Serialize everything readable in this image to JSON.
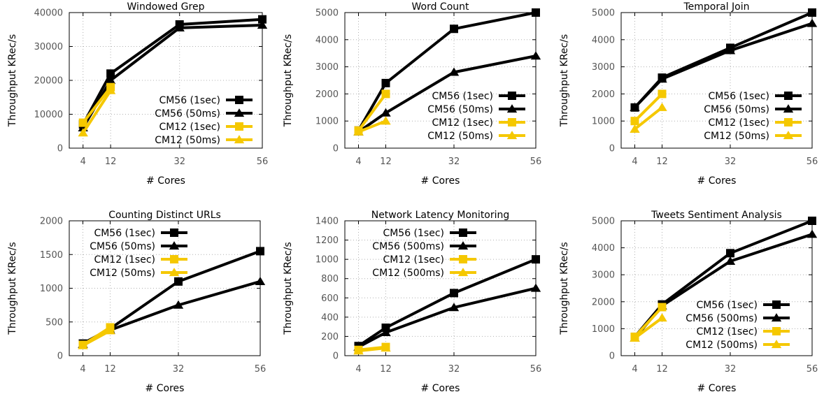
{
  "colors": {
    "cm56": "#000000",
    "cm12": "#f5c800",
    "grid": "#b0b0b0"
  },
  "chart_data": [
    {
      "type": "line",
      "title": "Windowed Grep",
      "xlabel": "# Cores",
      "ylabel": "Throughput KRec/s",
      "x": [
        4,
        12,
        32,
        56
      ],
      "ylim": [
        0,
        40000
      ],
      "yticks": [
        0,
        10000,
        20000,
        30000,
        40000
      ],
      "grid": true,
      "legend_position": "center-right",
      "series": [
        {
          "name": "CM56 (1sec)",
          "marker": "square",
          "color": "#000000",
          "x": [
            4,
            12,
            32,
            56
          ],
          "values": [
            7000,
            22000,
            36500,
            38000
          ]
        },
        {
          "name": "CM56 (50ms)",
          "marker": "triangle",
          "color": "#000000",
          "x": [
            4,
            12,
            32,
            56
          ],
          "values": [
            6000,
            20000,
            35500,
            36300
          ]
        },
        {
          "name": "CM12 (1sec)",
          "marker": "square",
          "color": "#f5c800",
          "x": [
            4,
            12
          ],
          "values": [
            7500,
            18000
          ]
        },
        {
          "name": "CM12 (50ms)",
          "marker": "triangle",
          "color": "#f5c800",
          "x": [
            4,
            12
          ],
          "values": [
            4500,
            17000
          ]
        }
      ]
    },
    {
      "type": "line",
      "title": "Word Count",
      "xlabel": "# Cores",
      "ylabel": "Throughput KRec/s",
      "x": [
        4,
        12,
        32,
        56
      ],
      "ylim": [
        0,
        5000
      ],
      "yticks": [
        0,
        1000,
        2000,
        3000,
        4000,
        5000
      ],
      "grid": true,
      "legend_position": "bottom-right",
      "series": [
        {
          "name": "CM56 (1sec)",
          "marker": "square",
          "color": "#000000",
          "x": [
            4,
            12,
            32,
            56
          ],
          "values": [
            650,
            2400,
            4400,
            5000
          ]
        },
        {
          "name": "CM56 (50ms)",
          "marker": "triangle",
          "color": "#000000",
          "x": [
            4,
            12,
            32,
            56
          ],
          "values": [
            600,
            1300,
            2800,
            3400
          ]
        },
        {
          "name": "CM12 (1sec)",
          "marker": "square",
          "color": "#f5c800",
          "x": [
            4,
            12
          ],
          "values": [
            650,
            2000
          ]
        },
        {
          "name": "CM12 (50ms)",
          "marker": "triangle",
          "color": "#f5c800",
          "x": [
            4,
            12
          ],
          "values": [
            600,
            1000
          ]
        }
      ]
    },
    {
      "type": "line",
      "title": "Temporal Join",
      "xlabel": "# Cores",
      "ylabel": "Throughput KRec/s",
      "x": [
        4,
        12,
        32,
        56
      ],
      "ylim": [
        0,
        5000
      ],
      "yticks": [
        0,
        1000,
        2000,
        3000,
        4000,
        5000
      ],
      "grid": true,
      "legend_position": "bottom-right",
      "series": [
        {
          "name": "CM56 (1sec)",
          "marker": "square",
          "color": "#000000",
          "x": [
            4,
            12,
            32,
            56
          ],
          "values": [
            1500,
            2600,
            3700,
            5000
          ]
        },
        {
          "name": "CM56 (50ms)",
          "marker": "triangle",
          "color": "#000000",
          "x": [
            4,
            12,
            32,
            56
          ],
          "values": [
            1500,
            2550,
            3600,
            4600
          ]
        },
        {
          "name": "CM12 (1sec)",
          "marker": "square",
          "color": "#f5c800",
          "x": [
            4,
            12
          ],
          "values": [
            1000,
            2000
          ]
        },
        {
          "name": "CM12 (50ms)",
          "marker": "triangle",
          "color": "#f5c800",
          "x": [
            4,
            12
          ],
          "values": [
            700,
            1500
          ]
        }
      ]
    },
    {
      "type": "line",
      "title": "Counting Distinct URLs",
      "xlabel": "# Cores",
      "ylabel": "Throughput KRec/s",
      "x": [
        4,
        12,
        32,
        56
      ],
      "ylim": [
        0,
        2000
      ],
      "yticks": [
        0,
        500,
        1000,
        1500,
        2000
      ],
      "grid": true,
      "legend_position": "top-left",
      "series": [
        {
          "name": "CM56 (1sec)",
          "marker": "square",
          "color": "#000000",
          "x": [
            4,
            12,
            32,
            56
          ],
          "values": [
            180,
            400,
            1100,
            1550
          ]
        },
        {
          "name": "CM56 (50ms)",
          "marker": "triangle",
          "color": "#000000",
          "x": [
            4,
            12,
            32,
            56
          ],
          "values": [
            170,
            380,
            750,
            1100
          ]
        },
        {
          "name": "CM12 (1sec)",
          "marker": "square",
          "color": "#f5c800",
          "x": [
            4,
            12
          ],
          "values": [
            160,
            420
          ]
        },
        {
          "name": "CM12 (50ms)",
          "marker": "triangle",
          "color": "#f5c800",
          "x": [
            4,
            12
          ],
          "values": [
            150,
            370
          ]
        }
      ]
    },
    {
      "type": "line",
      "title": "Network Latency Monitoring",
      "xlabel": "# Cores",
      "ylabel": "Throughput KRec/s",
      "x": [
        4,
        12,
        32,
        56
      ],
      "ylim": [
        0,
        1400
      ],
      "yticks": [
        0,
        200,
        400,
        600,
        800,
        1000,
        1200,
        1400
      ],
      "grid": true,
      "legend_position": "top-left",
      "series": [
        {
          "name": "CM56 (1sec)",
          "marker": "square",
          "color": "#000000",
          "x": [
            4,
            12,
            32,
            56
          ],
          "values": [
            100,
            290,
            650,
            1000
          ]
        },
        {
          "name": "CM56 (500ms)",
          "marker": "triangle",
          "color": "#000000",
          "x": [
            4,
            12,
            32,
            56
          ],
          "values": [
            90,
            240,
            500,
            700
          ]
        },
        {
          "name": "CM12 (1sec)",
          "marker": "square",
          "color": "#f5c800",
          "x": [
            4,
            12
          ],
          "values": [
            60,
            90
          ]
        },
        {
          "name": "CM12 (500ms)",
          "marker": "triangle",
          "color": "#f5c800",
          "x": [
            4,
            12
          ],
          "values": [
            50,
            80
          ]
        }
      ]
    },
    {
      "type": "line",
      "title": "Tweets Sentiment Analysis",
      "xlabel": "# Cores",
      "ylabel": "Throughput KRec/s",
      "x": [
        4,
        12,
        32,
        56
      ],
      "ylim": [
        0,
        5000
      ],
      "yticks": [
        0,
        1000,
        2000,
        3000,
        4000,
        5000
      ],
      "grid": true,
      "legend_position": "bottom-right",
      "series": [
        {
          "name": "CM56 (1sec)",
          "marker": "square",
          "color": "#000000",
          "x": [
            4,
            12,
            32,
            56
          ],
          "values": [
            700,
            1900,
            3800,
            5000
          ]
        },
        {
          "name": "CM56 (500ms)",
          "marker": "triangle",
          "color": "#000000",
          "x": [
            4,
            12,
            32,
            56
          ],
          "values": [
            650,
            1850,
            3500,
            4500
          ]
        },
        {
          "name": "CM12 (1sec)",
          "marker": "square",
          "color": "#f5c800",
          "x": [
            4,
            12
          ],
          "values": [
            700,
            1800
          ]
        },
        {
          "name": "CM12 (500ms)",
          "marker": "triangle",
          "color": "#f5c800",
          "x": [
            4,
            12
          ],
          "values": [
            650,
            1400
          ]
        }
      ]
    }
  ]
}
